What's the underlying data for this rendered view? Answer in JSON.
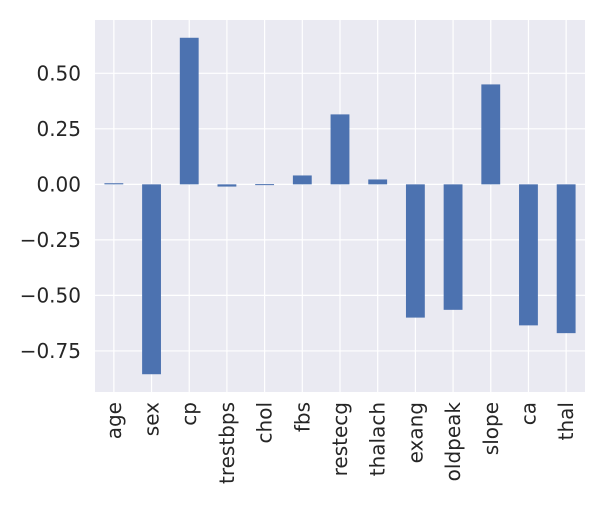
{
  "chart_data": {
    "type": "bar",
    "categories": [
      "age",
      "sex",
      "cp",
      "trestbps",
      "chol",
      "fbs",
      "restecg",
      "thalach",
      "exang",
      "oldpeak",
      "slope",
      "ca",
      "thal"
    ],
    "series": [
      {
        "values": [
          0.005,
          -0.855,
          0.66,
          -0.01,
          0.001,
          0.04,
          0.315,
          0.022,
          -0.6,
          -0.565,
          0.45,
          -0.635,
          -0.67
        ]
      }
    ],
    "yticks": [
      "0.50",
      "0.25",
      "0.00",
      "−0.25",
      "−0.50",
      "−0.75"
    ],
    "ylim": [
      -0.935,
      0.74
    ],
    "title": "",
    "xlabel": "",
    "ylabel": "",
    "colors": {
      "bar": "#4c72b0",
      "background": "#eaeaf2",
      "grid": "#ffffff",
      "text": "#262626"
    },
    "grid": true,
    "legend": false
  }
}
